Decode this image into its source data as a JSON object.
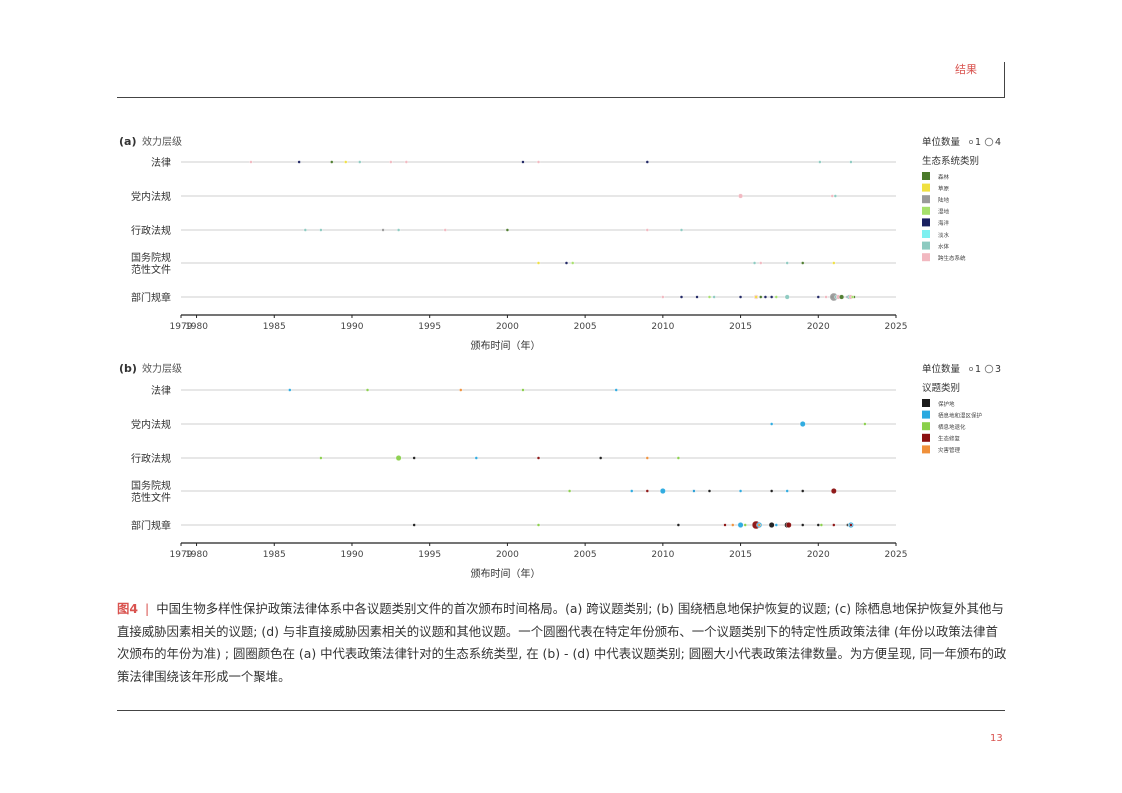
{
  "header": {
    "section": "结果"
  },
  "page_number": "13",
  "caption": {
    "label": "图4",
    "text": "中国生物多样性保护政策法律体系中各议题类别文件的首次颁布时间格局。(a) 跨议题类别; (b) 围绕栖息地保护恢复的议题; (c) 除栖息地保护恢复外其他与直接威胁因素相关的议题; (d) 与非直接威胁因素相关的议题和其他议题。一个圆圈代表在特定年份颁布、一个议题类别下的特定性质政策法律 (年份以政策法律首次颁布的年份为准) ; 圆圈颜色在 (a) 中代表政策法律针对的生态系统类型, 在 (b) - (d) 中代表议题类别; 圆圈大小代表政策法律数量。为方便呈现, 同一年颁布的政策法律围绕该年形成一个聚堆。"
  },
  "chart_data": [
    {
      "type": "scatter",
      "panel": "(a)",
      "ylabel": "效力层级",
      "xlabel": "颁布时间（年）",
      "xlim": [
        1979,
        2025
      ],
      "xticks": [
        1979,
        1980,
        1985,
        1990,
        1995,
        2000,
        2005,
        2010,
        2015,
        2020,
        2025
      ],
      "categories": [
        "法律",
        "党内法规",
        "行政法规",
        "国务院规范性文件",
        "部门规章"
      ],
      "category_labels": [
        [
          "法律"
        ],
        [
          "党内法规"
        ],
        [
          "行政法规"
        ],
        [
          "国务院规",
          "范性文件"
        ],
        [
          "部门规章"
        ]
      ],
      "legend": {
        "size_title": "单位数量",
        "size_min_label": "1",
        "size_max_label": "4",
        "color_title": "生态系统类别",
        "items": [
          {
            "label": "森林",
            "color": "#4a7a2a"
          },
          {
            "label": "草原",
            "color": "#f0e040"
          },
          {
            "label": "陆地",
            "color": "#9a9a9a"
          },
          {
            "label": "湿地",
            "color": "#a6e06a"
          },
          {
            "label": "海洋",
            "color": "#1a2060"
          },
          {
            "label": "淡水",
            "color": "#7ef0f0"
          },
          {
            "label": "水体",
            "color": "#8ccac0"
          },
          {
            "label": "跨生态系统",
            "color": "#f2b8c0"
          }
        ]
      },
      "points": [
        {
          "row": 0,
          "x": 1983.5,
          "group": "跨生态系统",
          "n": 1
        },
        {
          "row": 0,
          "x": 1986.6,
          "group": "海洋",
          "n": 1
        },
        {
          "row": 0,
          "x": 1988.7,
          "group": "森林",
          "n": 1
        },
        {
          "row": 0,
          "x": 1989.6,
          "group": "草原",
          "n": 1
        },
        {
          "row": 0,
          "x": 1990.5,
          "group": "水体",
          "n": 1
        },
        {
          "row": 0,
          "x": 1992.5,
          "group": "跨生态系统",
          "n": 1
        },
        {
          "row": 0,
          "x": 1993.5,
          "group": "跨生态系统",
          "n": 1
        },
        {
          "row": 0,
          "x": 2001.0,
          "group": "海洋",
          "n": 1
        },
        {
          "row": 0,
          "x": 2002.0,
          "group": "跨生态系统",
          "n": 1
        },
        {
          "row": 0,
          "x": 2009.0,
          "group": "海洋",
          "n": 1
        },
        {
          "row": 0,
          "x": 2020.1,
          "group": "水体",
          "n": 1
        },
        {
          "row": 0,
          "x": 2022.1,
          "group": "水体",
          "n": 1
        },
        {
          "row": 1,
          "x": 2015.0,
          "group": "跨生态系统",
          "n": 2
        },
        {
          "row": 1,
          "x": 2020.9,
          "group": "跨生态系统",
          "n": 1
        },
        {
          "row": 1,
          "x": 2021.1,
          "group": "水体",
          "n": 1
        },
        {
          "row": 2,
          "x": 1987.0,
          "group": "水体",
          "n": 1
        },
        {
          "row": 2,
          "x": 1988.0,
          "group": "水体",
          "n": 1
        },
        {
          "row": 2,
          "x": 1992.0,
          "group": "陆地",
          "n": 1
        },
        {
          "row": 2,
          "x": 1993.0,
          "group": "水体",
          "n": 1
        },
        {
          "row": 2,
          "x": 1996.0,
          "group": "跨生态系统",
          "n": 1
        },
        {
          "row": 2,
          "x": 2000.0,
          "group": "森林",
          "n": 1
        },
        {
          "row": 2,
          "x": 2009.0,
          "group": "跨生态系统",
          "n": 1
        },
        {
          "row": 2,
          "x": 2011.2,
          "group": "水体",
          "n": 1
        },
        {
          "row": 3,
          "x": 2002.0,
          "group": "草原",
          "n": 1
        },
        {
          "row": 3,
          "x": 2003.8,
          "group": "海洋",
          "n": 1
        },
        {
          "row": 3,
          "x": 2004.2,
          "group": "湿地",
          "n": 1
        },
        {
          "row": 3,
          "x": 2015.9,
          "group": "水体",
          "n": 1
        },
        {
          "row": 3,
          "x": 2016.3,
          "group": "跨生态系统",
          "n": 1
        },
        {
          "row": 3,
          "x": 2018.0,
          "group": "水体",
          "n": 1
        },
        {
          "row": 3,
          "x": 2019.0,
          "group": "森林",
          "n": 1
        },
        {
          "row": 3,
          "x": 2021.0,
          "group": "草原",
          "n": 1
        },
        {
          "row": 4,
          "x": 2010.0,
          "group": "跨生态系统",
          "n": 1
        },
        {
          "row": 4,
          "x": 2011.2,
          "group": "海洋",
          "n": 1
        },
        {
          "row": 4,
          "x": 2012.2,
          "group": "海洋",
          "n": 1
        },
        {
          "row": 4,
          "x": 2013.0,
          "group": "湿地",
          "n": 1
        },
        {
          "row": 4,
          "x": 2013.3,
          "group": "水体",
          "n": 1
        },
        {
          "row": 4,
          "x": 2015.0,
          "group": "海洋",
          "n": 1
        },
        {
          "row": 4,
          "x": 2016.0,
          "group": "跨生态系统",
          "n": 2
        },
        {
          "row": 4,
          "x": 2016.3,
          "group": "陆地",
          "n": 1
        },
        {
          "row": 4,
          "x": 2016.0,
          "group": "草原",
          "n": 1
        },
        {
          "row": 4,
          "x": 2016.3,
          "group": "森林",
          "n": 1
        },
        {
          "row": 4,
          "x": 2016.6,
          "group": "海洋",
          "n": 1
        },
        {
          "row": 4,
          "x": 2017.0,
          "group": "海洋",
          "n": 1
        },
        {
          "row": 4,
          "x": 2017.3,
          "group": "湿地",
          "n": 1
        },
        {
          "row": 4,
          "x": 2018.0,
          "group": "水体",
          "n": 2
        },
        {
          "row": 4,
          "x": 2020.0,
          "group": "海洋",
          "n": 1
        },
        {
          "row": 4,
          "x": 2020.5,
          "group": "跨生态系统",
          "n": 1
        },
        {
          "row": 4,
          "x": 2020.9,
          "group": "森林",
          "n": 1
        },
        {
          "row": 4,
          "x": 2021.0,
          "group": "陆地",
          "n": 4
        },
        {
          "row": 4,
          "x": 2021.2,
          "group": "水体",
          "n": 2
        },
        {
          "row": 4,
          "x": 2021.3,
          "group": "跨生态系统",
          "n": 2
        },
        {
          "row": 4,
          "x": 2021.5,
          "group": "森林",
          "n": 2
        },
        {
          "row": 4,
          "x": 2021.9,
          "group": "海洋",
          "n": 1
        },
        {
          "row": 4,
          "x": 2022.0,
          "group": "水体",
          "n": 2
        },
        {
          "row": 4,
          "x": 2022.1,
          "group": "跨生态系统",
          "n": 2
        },
        {
          "row": 4,
          "x": 2022.3,
          "group": "森林",
          "n": 1
        },
        {
          "row": 4,
          "x": 2022.2,
          "group": "湿地",
          "n": 1
        }
      ]
    },
    {
      "type": "scatter",
      "panel": "(b)",
      "ylabel": "效力层级",
      "xlabel": "颁布时间（年）",
      "xlim": [
        1979,
        2025
      ],
      "xticks": [
        1979,
        1980,
        1985,
        1990,
        1995,
        2000,
        2005,
        2010,
        2015,
        2020,
        2025
      ],
      "categories": [
        "法律",
        "党内法规",
        "行政法规",
        "国务院规范性文件",
        "部门规章"
      ],
      "category_labels": [
        [
          "法律"
        ],
        [
          "党内法规"
        ],
        [
          "行政法规"
        ],
        [
          "国务院规",
          "范性文件"
        ],
        [
          "部门规章"
        ]
      ],
      "legend": {
        "size_title": "单位数量",
        "size_min_label": "1",
        "size_max_label": "3",
        "color_title": "议题类别",
        "items": [
          {
            "label": "保护地",
            "color": "#1a1a1a"
          },
          {
            "label": "栖息地和湿区保护",
            "color": "#29a9e0"
          },
          {
            "label": "栖息地退化",
            "color": "#8ad04a"
          },
          {
            "label": "生态修复",
            "color": "#8b1010"
          },
          {
            "label": "灾害管理",
            "color": "#f0903a"
          }
        ]
      },
      "points": [
        {
          "row": 0,
          "x": 1986.0,
          "group": "栖息地和湿区保护",
          "n": 1
        },
        {
          "row": 0,
          "x": 1991.0,
          "group": "栖息地退化",
          "n": 1
        },
        {
          "row": 0,
          "x": 1997.0,
          "group": "灾害管理",
          "n": 1
        },
        {
          "row": 0,
          "x": 2001.0,
          "group": "栖息地退化",
          "n": 1
        },
        {
          "row": 0,
          "x": 2007.0,
          "group": "栖息地和湿区保护",
          "n": 1
        },
        {
          "row": 1,
          "x": 2017.0,
          "group": "栖息地和湿区保护",
          "n": 1
        },
        {
          "row": 1,
          "x": 2019.0,
          "group": "栖息地和湿区保护",
          "n": 2
        },
        {
          "row": 1,
          "x": 2023.0,
          "group": "栖息地退化",
          "n": 1
        },
        {
          "row": 2,
          "x": 1988.0,
          "group": "栖息地退化",
          "n": 1
        },
        {
          "row": 2,
          "x": 1993.0,
          "group": "栖息地退化",
          "n": 2
        },
        {
          "row": 2,
          "x": 1994.0,
          "group": "保护地",
          "n": 1
        },
        {
          "row": 2,
          "x": 1998.0,
          "group": "栖息地和湿区保护",
          "n": 1
        },
        {
          "row": 2,
          "x": 2002.0,
          "group": "生态修复",
          "n": 1
        },
        {
          "row": 2,
          "x": 2006.0,
          "group": "保护地",
          "n": 1
        },
        {
          "row": 2,
          "x": 2009.0,
          "group": "灾害管理",
          "n": 1
        },
        {
          "row": 2,
          "x": 2011.0,
          "group": "栖息地退化",
          "n": 1
        },
        {
          "row": 3,
          "x": 2004.0,
          "group": "栖息地退化",
          "n": 1
        },
        {
          "row": 3,
          "x": 2008.0,
          "group": "栖息地和湿区保护",
          "n": 1
        },
        {
          "row": 3,
          "x": 2009.0,
          "group": "生态修复",
          "n": 1
        },
        {
          "row": 3,
          "x": 2010.0,
          "group": "栖息地和湿区保护",
          "n": 2
        },
        {
          "row": 3,
          "x": 2012.0,
          "group": "生态修复",
          "n": 1
        },
        {
          "row": 3,
          "x": 2012.0,
          "group": "栖息地和湿区保护",
          "n": 1
        },
        {
          "row": 3,
          "x": 2013.0,
          "group": "保护地",
          "n": 1
        },
        {
          "row": 3,
          "x": 2015.0,
          "group": "栖息地和湿区保护",
          "n": 1
        },
        {
          "row": 3,
          "x": 2017.0,
          "group": "保护地",
          "n": 1
        },
        {
          "row": 3,
          "x": 2018.0,
          "group": "栖息地和湿区保护",
          "n": 1
        },
        {
          "row": 3,
          "x": 2019.0,
          "group": "保护地",
          "n": 1
        },
        {
          "row": 3,
          "x": 2021.0,
          "group": "生态修复",
          "n": 2
        },
        {
          "row": 4,
          "x": 1994.0,
          "group": "保护地",
          "n": 1
        },
        {
          "row": 4,
          "x": 2002.0,
          "group": "栖息地退化",
          "n": 1
        },
        {
          "row": 4,
          "x": 2011.0,
          "group": "保护地",
          "n": 1
        },
        {
          "row": 4,
          "x": 2014.0,
          "group": "生态修复",
          "n": 1
        },
        {
          "row": 4,
          "x": 2014.5,
          "group": "灾害管理",
          "n": 1
        },
        {
          "row": 4,
          "x": 2015.0,
          "group": "栖息地和湿区保护",
          "n": 2
        },
        {
          "row": 4,
          "x": 2015.3,
          "group": "栖息地退化",
          "n": 1
        },
        {
          "row": 4,
          "x": 2016.0,
          "group": "生态修复",
          "n": 3
        },
        {
          "row": 4,
          "x": 2016.2,
          "group": "栖息地和湿区保护",
          "n": 2
        },
        {
          "row": 4,
          "x": 2016.2,
          "group": "灾害管理",
          "n": 1
        },
        {
          "row": 4,
          "x": 2017.0,
          "group": "保护地",
          "n": 2
        },
        {
          "row": 4,
          "x": 2017.3,
          "group": "栖息地和湿区保护",
          "n": 1
        },
        {
          "row": 4,
          "x": 2018.0,
          "group": "保护地",
          "n": 2
        },
        {
          "row": 4,
          "x": 2018.1,
          "group": "生态修复",
          "n": 2
        },
        {
          "row": 4,
          "x": 2019.0,
          "group": "保护地",
          "n": 1
        },
        {
          "row": 4,
          "x": 2020.0,
          "group": "保护地",
          "n": 1
        },
        {
          "row": 4,
          "x": 2020.2,
          "group": "栖息地退化",
          "n": 1
        },
        {
          "row": 4,
          "x": 2021.0,
          "group": "生态修复",
          "n": 1
        },
        {
          "row": 4,
          "x": 2021.9,
          "group": "保护地",
          "n": 1
        },
        {
          "row": 4,
          "x": 2022.0,
          "group": "灾害管理",
          "n": 1
        },
        {
          "row": 4,
          "x": 2022.1,
          "group": "栖息地和湿区保护",
          "n": 2
        },
        {
          "row": 4,
          "x": 2022.1,
          "group": "生态修复",
          "n": 1
        }
      ]
    }
  ]
}
